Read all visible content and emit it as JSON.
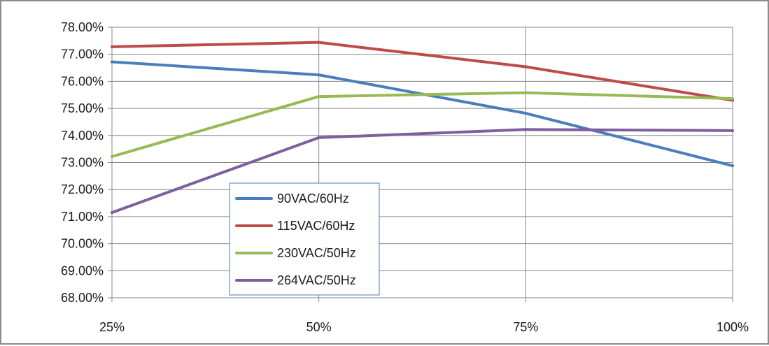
{
  "chart_data": {
    "type": "line",
    "title": "",
    "xlabel": "",
    "ylabel": "",
    "categories": [
      "25%",
      "50%",
      "75%",
      "100%"
    ],
    "ylim": [
      0.68,
      0.78
    ],
    "yticks": [
      "68.00%",
      "69.00%",
      "70.00%",
      "71.00%",
      "72.00%",
      "73.00%",
      "74.00%",
      "75.00%",
      "76.00%",
      "77.00%",
      "78.00%"
    ],
    "ytick_values": [
      0.68,
      0.69,
      0.7,
      0.71,
      0.72,
      0.73,
      0.74,
      0.75,
      0.76,
      0.77,
      0.78
    ],
    "grid": true,
    "legend_position": "center-left",
    "series": [
      {
        "name": "90VAC/60Hz",
        "color": "#4a7ebb",
        "values": [
          0.7672,
          0.7624,
          0.7482,
          0.7288
        ]
      },
      {
        "name": "115VAC/60Hz",
        "color": "#be4b48",
        "values": [
          0.7728,
          0.7744,
          0.7654,
          0.753
        ]
      },
      {
        "name": "230VAC/50Hz",
        "color": "#98b954",
        "values": [
          0.7322,
          0.7544,
          0.7558,
          0.7536
        ]
      },
      {
        "name": "264VAC/50Hz",
        "color": "#7d5fa0",
        "values": [
          0.7115,
          0.7392,
          0.7422,
          0.7418
        ]
      }
    ]
  }
}
